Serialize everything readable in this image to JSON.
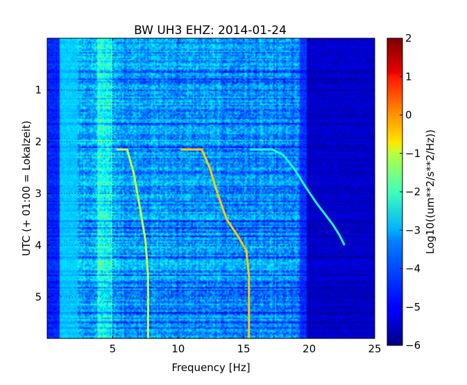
{
  "chart_data": {
    "type": "heatmap",
    "title": "BW UH3 EHZ: 2014-01-24",
    "xlabel": "Frequency [Hz]",
    "ylabel": "UTC (+ 01:00 = Lokalzeit)",
    "xlim": [
      0,
      25
    ],
    "ylim": [
      5.8,
      0
    ],
    "x_ticks": [
      5,
      10,
      15,
      20,
      25
    ],
    "x_tick_labels": [
      "5",
      "10",
      "15",
      "20",
      "25"
    ],
    "y_ticks": [
      1,
      2,
      3,
      4,
      5
    ],
    "y_tick_labels": [
      "1",
      "2",
      "3",
      "4",
      "5"
    ],
    "colormap": "jet",
    "colorbar": {
      "label": "Log10((um**2/s**2/Hz))",
      "range": [
        -6,
        2
      ],
      "ticks": [
        2,
        1,
        0,
        -1,
        -2,
        -3,
        -4,
        -5,
        -6
      ],
      "tick_labels": [
        "2",
        "1",
        "0",
        "−1",
        "−2",
        "−3",
        "−4",
        "−5",
        "−6"
      ]
    },
    "grid": true,
    "features": {
      "background_noise_cutoff_hz": 19.5,
      "sweep_traces": [
        {
          "points": [
            [
              5.3,
              2.15
            ],
            [
              6.1,
              2.15
            ],
            [
              6.6,
              2.6
            ],
            [
              7.1,
              3.3
            ],
            [
              7.5,
              3.9
            ],
            [
              7.7,
              4.6
            ],
            [
              7.7,
              5.8
            ]
          ],
          "level": -1.5
        },
        {
          "points": [
            [
              10.2,
              2.15
            ],
            [
              11.8,
              2.15
            ],
            [
              12.4,
              2.5
            ],
            [
              13.0,
              3.0
            ],
            [
              13.7,
              3.5
            ],
            [
              14.5,
              3.8
            ],
            [
              15.2,
              4.1
            ],
            [
              15.4,
              4.6
            ],
            [
              15.4,
              5.8
            ]
          ],
          "level": -0.6
        },
        {
          "points": [
            [
              15.5,
              2.15
            ],
            [
              17.2,
              2.15
            ],
            [
              18.0,
              2.25
            ],
            [
              18.8,
              2.5
            ],
            [
              19.8,
              2.9
            ],
            [
              20.6,
              3.2
            ],
            [
              21.2,
              3.4
            ],
            [
              21.8,
              3.6
            ],
            [
              22.3,
              3.8
            ],
            [
              22.7,
              4.0
            ]
          ],
          "level": -2.8
        }
      ],
      "bright_band_hz": [
        3.8,
        5.0
      ],
      "low_freq_band_hz": [
        0,
        2.2
      ]
    }
  }
}
